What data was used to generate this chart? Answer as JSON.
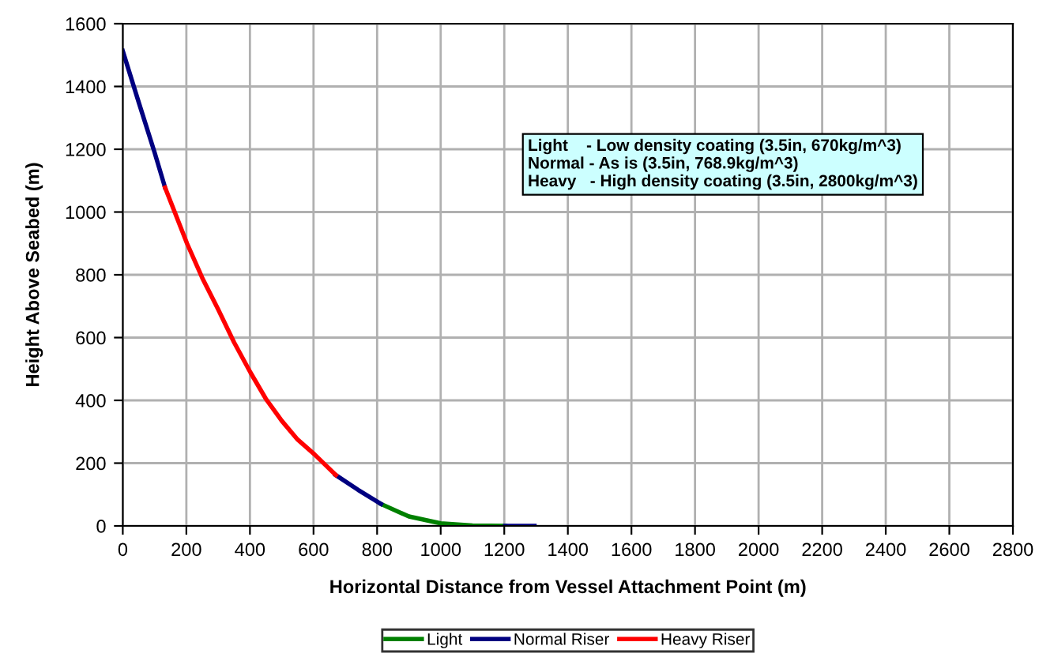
{
  "chart_data": {
    "type": "line",
    "xlabel": "Horizontal Distance from Vessel Attachment Point (m)",
    "ylabel": "Height Above Seabed (m)",
    "xlim": [
      0,
      2800
    ],
    "xticks": [
      0,
      200,
      400,
      600,
      800,
      1000,
      1200,
      1400,
      1600,
      1800,
      2000,
      2200,
      2400,
      2600,
      2800
    ],
    "ylim": [
      0,
      1600
    ],
    "yticks": [
      0,
      200,
      400,
      600,
      800,
      1000,
      1200,
      1400,
      1600
    ],
    "grid": true,
    "legend": "bottom",
    "marker": "none",
    "line_style": "solid",
    "annotations": [
      "Light    - Low density coating (3.5in, 670kg/m^3)\nNormal - As is (3.5in, 768.9kg/m^3)\nHeavy   - High density coating (3.5in, 2800kg/m^3)"
    ],
    "series": [
      {
        "name": "Light",
        "color": "#008000",
        "x": [
          812,
          900,
          1000,
          1100,
          1203
        ],
        "values": [
          70,
          30,
          8,
          1,
          0
        ]
      },
      {
        "name": "Normal Riser",
        "color": "#000080",
        "x": [
          0,
          50,
          100,
          133,
          null,
          670,
          740,
          812,
          null,
          1203,
          1295
        ],
        "values": [
          1513,
          1350,
          1190,
          1078,
          null,
          162,
          115,
          70,
          null,
          0,
          0
        ]
      },
      {
        "name": "Heavy Riser",
        "color": "#ff0000",
        "x": [
          133,
          202,
          250,
          300,
          350,
          402,
          450,
          500,
          550,
          603,
          670
        ],
        "values": [
          1078,
          900,
          790,
          690,
          585,
          488,
          405,
          335,
          275,
          228,
          162
        ]
      }
    ]
  }
}
